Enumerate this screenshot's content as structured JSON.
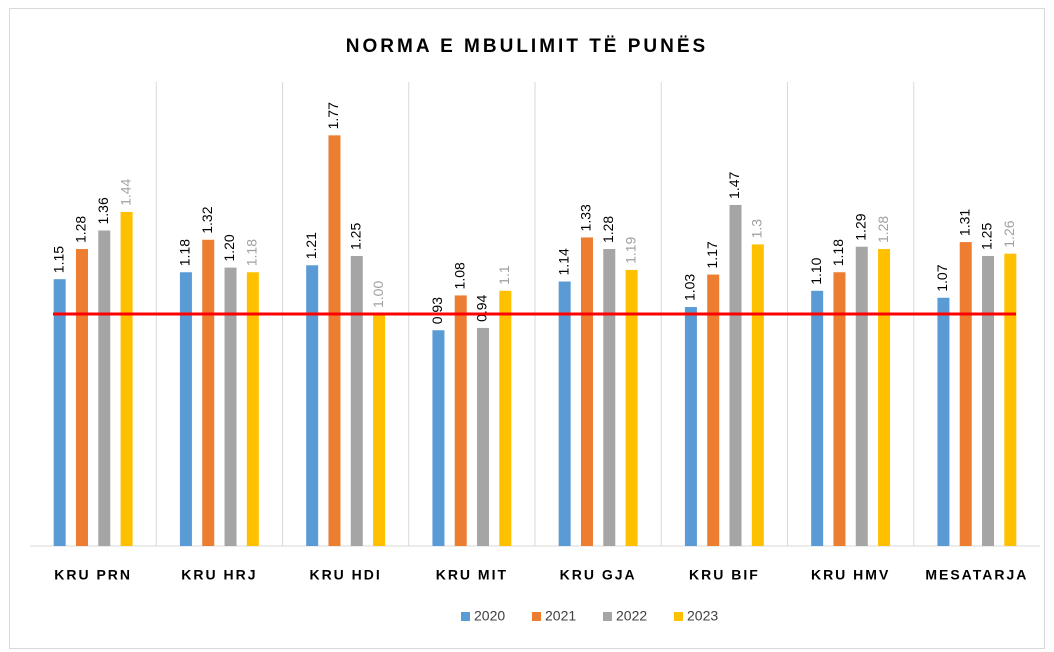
{
  "chart_data": {
    "type": "bar",
    "title": "NORMA E MBULIMIT TË PUNËS",
    "categories": [
      "KRU PRN",
      "KRU HRJ",
      "KRU HDI",
      "KRU MIT",
      "KRU GJA",
      "KRU BIF",
      "KRU HMV",
      "MESATARJA"
    ],
    "series": [
      {
        "name": "2020",
        "color": "#5b9bd5",
        "label_color": "#000000",
        "values": [
          1.15,
          1.18,
          1.21,
          0.93,
          1.14,
          1.03,
          1.1,
          1.07
        ],
        "value_labels": [
          "1.15",
          "1.18",
          "1.21",
          "0.93",
          "1.14",
          "1.03",
          "1.10",
          "1.07"
        ]
      },
      {
        "name": "2021",
        "color": "#ed7d31",
        "label_color": "#000000",
        "values": [
          1.28,
          1.32,
          1.77,
          1.08,
          1.33,
          1.17,
          1.18,
          1.31
        ]
      },
      {
        "name": "2022",
        "color": "#a5a5a5",
        "label_color": "#000000",
        "values": [
          1.36,
          1.2,
          1.25,
          0.94,
          1.28,
          1.47,
          1.29,
          1.25
        ],
        "value_labels": [
          "1.36",
          "1.20",
          "1.25",
          "0.94",
          "1.28",
          "1.47",
          "1.29",
          "1.25"
        ]
      },
      {
        "name": "2023",
        "color": "#ffc000",
        "label_color": "#a0a0a0",
        "values": [
          1.44,
          1.18,
          1,
          1.1,
          1.19,
          1.3,
          1.28,
          1.26
        ],
        "value_labels": [
          "1.44",
          "1.18",
          "1.00",
          "1.1",
          "1.19",
          "1.3",
          "1.28",
          "1.26"
        ]
      }
    ],
    "ylim": [
      0,
      2
    ],
    "reference_line": {
      "value": 1,
      "color": "#ff0000"
    },
    "legend": "bottom"
  }
}
